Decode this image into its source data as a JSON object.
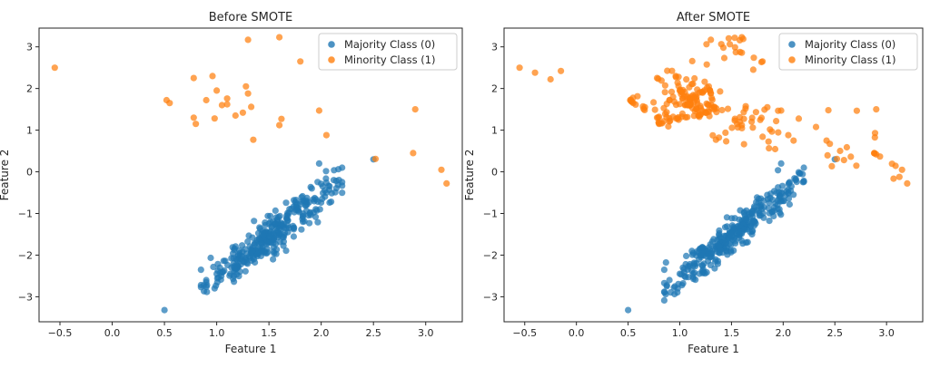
{
  "chart_data": [
    {
      "type": "scatter",
      "title": "Before SMOTE",
      "xlabel": "Feature 1",
      "ylabel": "Feature 2",
      "xlim": [
        -0.7,
        3.35
      ],
      "ylim": [
        -3.6,
        3.45
      ],
      "xticks": [
        -0.5,
        0.0,
        0.5,
        1.0,
        1.5,
        2.0,
        2.5,
        3.0
      ],
      "xtick_labels": [
        "−0.5",
        "0.0",
        "0.5",
        "1.0",
        "1.5",
        "2.0",
        "2.5",
        "3.0"
      ],
      "yticks": [
        -3,
        -2,
        -1,
        0,
        1,
        2,
        3
      ],
      "ytick_labels": [
        "−3",
        "−2",
        "−1",
        "0",
        "1",
        "2",
        "3"
      ],
      "grid": false,
      "legend_position": "top-right",
      "series": [
        {
          "name": "Majority Class (0)",
          "color": "#1f77b4",
          "generated": {
            "count": 320,
            "x_min": 0.85,
            "x_max": 2.2,
            "center": [
              1.55,
              -1.45
            ],
            "slope": 2.0,
            "spread": 0.22
          },
          "points": [
            [
              0.5,
              -3.32
            ],
            [
              0.85,
              -2.35
            ],
            [
              0.9,
              -2.6
            ],
            [
              0.98,
              -2.8
            ],
            [
              2.5,
              0.3
            ],
            [
              1.98,
              0.2
            ],
            [
              2.2,
              0.1
            ],
            [
              2.12,
              -0.2
            ],
            [
              2.05,
              -0.5
            ],
            [
              1.03,
              -2.3
            ],
            [
              1.13,
              -2.45
            ],
            [
              1.0,
              -2.45
            ],
            [
              2.08,
              -0.35
            ]
          ]
        },
        {
          "name": "Minority Class (1)",
          "color": "#ff7f0e",
          "points": [
            [
              -0.55,
              2.5
            ],
            [
              0.52,
              1.72
            ],
            [
              0.55,
              1.65
            ],
            [
              0.78,
              2.25
            ],
            [
              0.78,
              1.3
            ],
            [
              0.8,
              1.15
            ],
            [
              0.9,
              1.72
            ],
            [
              0.96,
              2.3
            ],
            [
              1.0,
              1.95
            ],
            [
              0.98,
              1.28
            ],
            [
              1.05,
              1.6
            ],
            [
              1.1,
              1.62
            ],
            [
              1.1,
              1.76
            ],
            [
              1.18,
              1.35
            ],
            [
              1.25,
              1.42
            ],
            [
              1.28,
              2.05
            ],
            [
              1.3,
              1.88
            ],
            [
              1.33,
              1.56
            ],
            [
              1.3,
              3.17
            ],
            [
              1.35,
              0.77
            ],
            [
              1.6,
              3.23
            ],
            [
              1.62,
              1.27
            ],
            [
              1.6,
              1.12
            ],
            [
              1.8,
              2.65
            ],
            [
              1.98,
              1.47
            ],
            [
              2.05,
              0.88
            ],
            [
              2.52,
              0.31
            ],
            [
              2.88,
              0.45
            ],
            [
              2.9,
              1.5
            ],
            [
              3.15,
              0.05
            ],
            [
              3.2,
              -0.28
            ]
          ]
        }
      ]
    },
    {
      "type": "scatter",
      "title": "After SMOTE",
      "xlabel": "Feature 1",
      "ylabel": "Feature 2",
      "xlim": [
        -0.7,
        3.35
      ],
      "ylim": [
        -3.6,
        3.45
      ],
      "xticks": [
        -0.5,
        0.0,
        0.5,
        1.0,
        1.5,
        2.0,
        2.5,
        3.0
      ],
      "xtick_labels": [
        "−0.5",
        "0.0",
        "0.5",
        "1.0",
        "1.5",
        "2.0",
        "2.5",
        "3.0"
      ],
      "yticks": [
        -3,
        -2,
        -1,
        0,
        1,
        2,
        3
      ],
      "ytick_labels": [
        "−3",
        "−2",
        "−1",
        "0",
        "1",
        "2",
        "3"
      ],
      "grid": false,
      "legend_position": "top-right",
      "series": [
        {
          "name": "Majority Class (0)",
          "color": "#1f77b4",
          "generated": {
            "count": 320,
            "x_min": 0.85,
            "x_max": 2.2,
            "center": [
              1.55,
              -1.45
            ],
            "slope": 2.0,
            "spread": 0.22
          },
          "points": [
            [
              0.5,
              -3.32
            ],
            [
              0.85,
              -2.35
            ],
            [
              0.9,
              -2.6
            ],
            [
              0.98,
              -2.8
            ],
            [
              2.5,
              0.3
            ],
            [
              1.98,
              0.2
            ],
            [
              2.2,
              0.1
            ],
            [
              2.12,
              -0.2
            ],
            [
              2.05,
              -0.5
            ],
            [
              1.03,
              -2.3
            ],
            [
              1.13,
              -2.45
            ],
            [
              1.0,
              -2.45
            ],
            [
              2.08,
              -0.35
            ]
          ]
        },
        {
          "name": "Minority Class (1)",
          "color": "#ff7f0e",
          "generated": {
            "synthetic_count": 220
          },
          "points": [
            [
              -0.55,
              2.5
            ],
            [
              -0.4,
              2.38
            ],
            [
              -0.25,
              2.22
            ],
            [
              -0.15,
              2.42
            ],
            [
              0.52,
              1.72
            ],
            [
              0.55,
              1.65
            ],
            [
              0.78,
              2.25
            ],
            [
              0.78,
              1.3
            ],
            [
              0.8,
              1.15
            ],
            [
              0.9,
              1.72
            ],
            [
              0.96,
              2.3
            ],
            [
              1.0,
              1.95
            ],
            [
              0.98,
              1.28
            ],
            [
              1.05,
              1.6
            ],
            [
              1.1,
              1.62
            ],
            [
              1.1,
              1.76
            ],
            [
              1.18,
              1.35
            ],
            [
              1.25,
              1.42
            ],
            [
              1.28,
              2.05
            ],
            [
              1.3,
              1.88
            ],
            [
              1.33,
              1.56
            ],
            [
              1.3,
              3.17
            ],
            [
              1.35,
              0.77
            ],
            [
              1.6,
              3.23
            ],
            [
              1.62,
              1.27
            ],
            [
              1.6,
              1.12
            ],
            [
              1.8,
              2.65
            ],
            [
              1.98,
              1.47
            ],
            [
              2.05,
              0.88
            ],
            [
              2.52,
              0.31
            ],
            [
              2.88,
              0.45
            ],
            [
              2.9,
              1.5
            ],
            [
              3.15,
              0.05
            ],
            [
              3.2,
              -0.28
            ]
          ]
        }
      ]
    }
  ]
}
